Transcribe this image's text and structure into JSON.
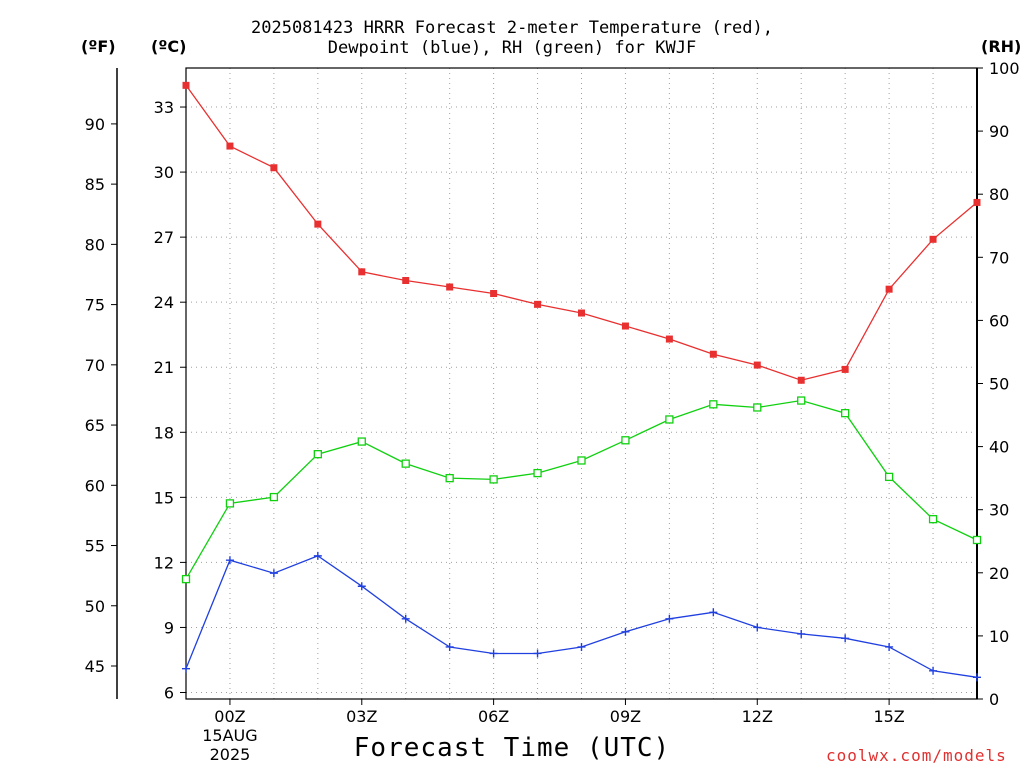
{
  "header": {
    "title_line1": "2025081423 HRRR Forecast 2-meter Temperature (red),",
    "title_line2": "Dewpoint (blue), RH (green) for KWJF"
  },
  "units": {
    "fahrenheit": "(ºF)",
    "celsius": "(ºC)",
    "rh": "(RH)"
  },
  "footer": {
    "xlabel": "Forecast Time (UTC)",
    "credit": "coolwx.com/models"
  },
  "colors": {
    "temperature": "#e83030",
    "dewpoint": "#2040e0",
    "rh": "#10d010",
    "grid": "#a0a0a0"
  },
  "chart_data": {
    "type": "line",
    "title": "2025081423 HRRR Forecast 2-meter Temperature (red), Dewpoint (blue), RH (green) for KWJF",
    "xlabel": "Forecast Time (UTC)",
    "x_hours": [
      -1,
      0,
      1,
      2,
      3,
      4,
      5,
      6,
      7,
      8,
      9,
      10,
      11,
      12,
      13,
      14,
      15,
      16,
      17
    ],
    "xlim": [
      -1,
      17
    ],
    "x_ticks": [
      {
        "hour": 0,
        "label": "00Z",
        "sub1": "15AUG",
        "sub2": "2025"
      },
      {
        "hour": 3,
        "label": "03Z"
      },
      {
        "hour": 6,
        "label": "06Z"
      },
      {
        "hour": 9,
        "label": "09Z"
      },
      {
        "hour": 12,
        "label": "12Z"
      },
      {
        "hour": 15,
        "label": "15Z"
      }
    ],
    "y_celsius": {
      "ylim": [
        5.7,
        34.8
      ],
      "ticks": [
        6,
        9,
        12,
        15,
        18,
        21,
        24,
        27,
        30,
        33
      ]
    },
    "y_fahrenheit": {
      "ticks": [
        45,
        50,
        55,
        60,
        65,
        70,
        75,
        80,
        85,
        90
      ]
    },
    "y_rh": {
      "ylim": [
        0,
        100
      ],
      "ticks": [
        0,
        10,
        20,
        30,
        40,
        50,
        60,
        70,
        80,
        90,
        100
      ]
    },
    "grid": true,
    "series": [
      {
        "name": "Temperature",
        "axis": "celsius",
        "marker": "filled-square",
        "values": [
          34.0,
          31.2,
          30.2,
          27.6,
          25.4,
          25.0,
          24.7,
          24.4,
          23.9,
          23.5,
          22.9,
          22.3,
          21.6,
          21.1,
          20.4,
          20.9,
          24.6,
          26.9,
          28.6
        ]
      },
      {
        "name": "Dewpoint",
        "axis": "celsius",
        "marker": "plus",
        "values": [
          7.1,
          12.1,
          11.5,
          12.3,
          10.9,
          9.4,
          8.1,
          7.8,
          7.8,
          8.1,
          8.8,
          9.4,
          9.7,
          9.0,
          8.7,
          8.5,
          8.1,
          7.0,
          6.7
        ]
      },
      {
        "name": "RH",
        "axis": "rh",
        "marker": "open-square",
        "values": [
          19.0,
          31.0,
          32.0,
          38.8,
          40.8,
          37.3,
          35.0,
          34.8,
          35.8,
          37.8,
          41.0,
          44.3,
          46.7,
          46.2,
          47.3,
          45.3,
          35.2,
          28.5,
          25.2
        ]
      }
    ]
  }
}
